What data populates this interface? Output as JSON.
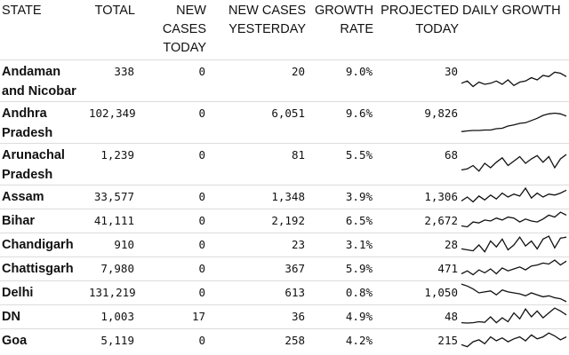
{
  "headers": {
    "state": "STATE",
    "total": "TOTAL",
    "new_today": [
      "NEW",
      "CASES",
      "TODAY"
    ],
    "new_yesterday": [
      "NEW CASES",
      "YESTERDAY"
    ],
    "growth_rate": [
      "GROWTH",
      "RATE"
    ],
    "projected": [
      "PROJECTED",
      "TODAY"
    ],
    "daily_growth": "DAILY GROWTH"
  },
  "rows": [
    {
      "state": "Andaman and Nicobar",
      "total": "338",
      "new_today": "0",
      "new_yesterday": "20",
      "growth_rate": "9.0%",
      "projected": "30",
      "spark": [
        0.55,
        0.45,
        0.7,
        0.5,
        0.6,
        0.55,
        0.45,
        0.6,
        0.4,
        0.65,
        0.5,
        0.45,
        0.3,
        0.4,
        0.2,
        0.25,
        0.05,
        0.1,
        0.25
      ]
    },
    {
      "state": "Andhra Pradesh",
      "total": "102,349",
      "new_today": "0",
      "new_yesterday": "6,051",
      "growth_rate": "9.6%",
      "projected": "9,826",
      "spark": [
        0.85,
        0.82,
        0.8,
        0.8,
        0.78,
        0.78,
        0.72,
        0.7,
        0.6,
        0.55,
        0.48,
        0.45,
        0.35,
        0.25,
        0.12,
        0.05,
        0.02,
        0.05,
        0.15
      ]
    },
    {
      "state": "Arunachal Pradesh",
      "total": "1,239",
      "new_today": "0",
      "new_yesterday": "81",
      "growth_rate": "5.5%",
      "projected": "68",
      "spark": [
        0.7,
        0.65,
        0.5,
        0.75,
        0.4,
        0.6,
        0.35,
        0.15,
        0.5,
        0.3,
        0.1,
        0.4,
        0.2,
        0.05,
        0.35,
        0.1,
        0.6,
        0.2,
        0.0
      ]
    },
    {
      "state": "Assam",
      "total": "33,577",
      "new_today": "0",
      "new_yesterday": "1,348",
      "growth_rate": "3.9%",
      "projected": "1,306",
      "spark": [
        0.7,
        0.5,
        0.75,
        0.45,
        0.65,
        0.4,
        0.6,
        0.3,
        0.5,
        0.35,
        0.45,
        0.05,
        0.55,
        0.3,
        0.5,
        0.35,
        0.4,
        0.3,
        0.15
      ]
    },
    {
      "state": "Bihar",
      "total": "41,111",
      "new_today": "0",
      "new_yesterday": "2,192",
      "growth_rate": "6.5%",
      "projected": "2,672",
      "spark": [
        0.75,
        0.8,
        0.55,
        0.6,
        0.45,
        0.5,
        0.35,
        0.45,
        0.3,
        0.35,
        0.55,
        0.4,
        0.5,
        0.55,
        0.4,
        0.2,
        0.3,
        0.05,
        0.2
      ]
    },
    {
      "state": "Chandigarh",
      "total": "910",
      "new_today": "0",
      "new_yesterday": "23",
      "growth_rate": "3.1%",
      "projected": "28",
      "spark": [
        0.7,
        0.75,
        0.8,
        0.5,
        0.85,
        0.3,
        0.6,
        0.2,
        0.75,
        0.5,
        0.1,
        0.55,
        0.3,
        0.7,
        0.2,
        0.05,
        0.65,
        0.15,
        0.1
      ]
    },
    {
      "state": "Chattisgarh",
      "total": "7,980",
      "new_today": "0",
      "new_yesterday": "367",
      "growth_rate": "5.9%",
      "projected": "471",
      "spark": [
        0.75,
        0.6,
        0.8,
        0.55,
        0.7,
        0.5,
        0.75,
        0.45,
        0.6,
        0.5,
        0.4,
        0.55,
        0.35,
        0.3,
        0.2,
        0.25,
        0.05,
        0.3,
        0.1
      ]
    },
    {
      "state": "Delhi",
      "total": "131,219",
      "new_today": "0",
      "new_yesterday": "613",
      "growth_rate": "0.8%",
      "projected": "1,050",
      "spark": [
        0.05,
        0.15,
        0.3,
        0.5,
        0.45,
        0.4,
        0.6,
        0.35,
        0.45,
        0.5,
        0.55,
        0.65,
        0.5,
        0.6,
        0.7,
        0.65,
        0.75,
        0.8,
        0.95
      ]
    },
    {
      "state": "DN",
      "total": "1,003",
      "new_today": "17",
      "new_yesterday": "36",
      "growth_rate": "4.9%",
      "projected": "48",
      "spark": [
        0.8,
        0.82,
        0.8,
        0.75,
        0.78,
        0.5,
        0.8,
        0.55,
        0.75,
        0.3,
        0.6,
        0.1,
        0.5,
        0.2,
        0.55,
        0.3,
        0.05,
        0.2,
        0.4
      ]
    },
    {
      "state": "Goa",
      "total": "5,119",
      "new_today": "0",
      "new_yesterday": "258",
      "growth_rate": "4.2%",
      "projected": "215",
      "spark": [
        0.7,
        0.8,
        0.55,
        0.45,
        0.65,
        0.3,
        0.5,
        0.35,
        0.55,
        0.4,
        0.3,
        0.5,
        0.2,
        0.4,
        0.3,
        0.1,
        0.25,
        0.45,
        0.3
      ]
    }
  ]
}
